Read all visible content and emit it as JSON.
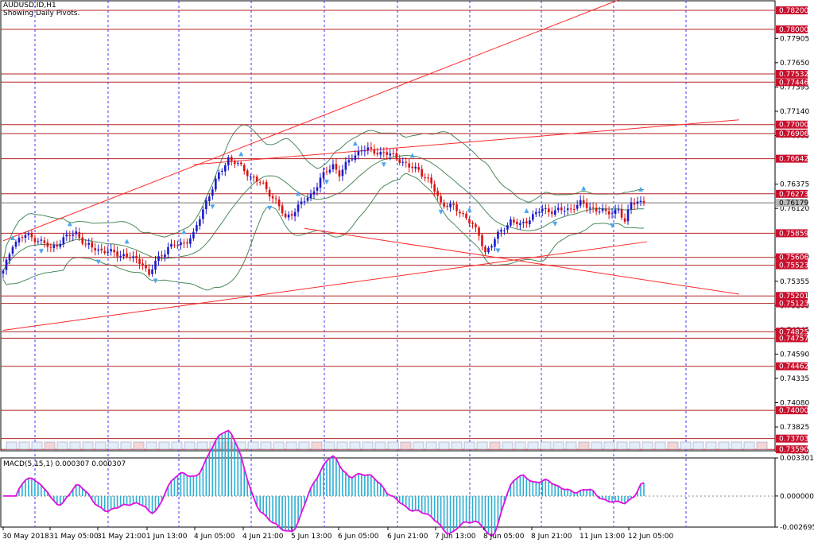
{
  "header": {
    "symbol": "AUDUSD.ID,H1",
    "subtitle": "Showing Daily Pivots."
  },
  "colors": {
    "pivot_line": "#b22222",
    "trend_line": "#ff2a2a",
    "grid": "#3a3aff",
    "bull_candle": "#1a1acc",
    "bear_candle": "#dd1111",
    "bollinger": "#4a8a5a",
    "fractal": "#4aa6ee",
    "macd_hist": "#2aaed2",
    "macd_signal": "#e010e0",
    "price_label_bg": "#c8102e"
  },
  "chart_data": [
    {
      "type": "candlestick",
      "title": "AUDUSD.ID,H1",
      "ylim": [
        0.73575,
        0.783
      ],
      "price_axis_ticks": [
        "0.77905",
        "0.77650",
        "0.77395",
        "0.77140",
        "0.76885",
        "0.76375",
        "0.76120",
        "0.75610",
        "0.75355",
        "0.75100",
        "0.74845",
        "0.74590",
        "0.74335",
        "0.74080",
        "0.73825",
        "0.73570"
      ],
      "pivot_levels": [
        "0.78200",
        "0.78000",
        "0.77532",
        "0.77446",
        "0.77000",
        "0.76906",
        "0.76642",
        "0.76273",
        "0.75859",
        "0.75606",
        "0.75523",
        "0.75201",
        "0.75123",
        "0.74825",
        "0.74757",
        "0.74462",
        "0.74000",
        "0.73703",
        "0.73590"
      ],
      "current_price": "0.76179",
      "time_labels": [
        "30 May 2018",
        "31 May 05:00",
        "31 May 21:00",
        "1 Jun 13:00",
        "4 Jun 05:00",
        "4 Jun 21:00",
        "5 Jun 13:00",
        "6 Jun 05:00",
        "6 Jun 21:00",
        "7 Jun 13:00",
        "8 Jun 05:00",
        "8 Jun 21:00",
        "11 Jun 13:00",
        "12 Jun 05:00"
      ],
      "close_path_anchors": [
        [
          0,
          0.7545
        ],
        [
          3,
          0.7575
        ],
        [
          7,
          0.7584
        ],
        [
          11,
          0.7579
        ],
        [
          15,
          0.757
        ],
        [
          20,
          0.7582
        ],
        [
          23,
          0.7587
        ],
        [
          26,
          0.7573
        ],
        [
          32,
          0.7567
        ],
        [
          38,
          0.7563
        ],
        [
          44,
          0.7555
        ],
        [
          46,
          0.7541
        ],
        [
          48,
          0.7556
        ],
        [
          52,
          0.7571
        ],
        [
          57,
          0.7576
        ],
        [
          60,
          0.7584
        ],
        [
          64,
          0.762
        ],
        [
          68,
          0.7647
        ],
        [
          71,
          0.7665
        ],
        [
          74,
          0.7658
        ],
        [
          78,
          0.7646
        ],
        [
          82,
          0.7636
        ],
        [
          86,
          0.762
        ],
        [
          89,
          0.7601
        ],
        [
          93,
          0.7614
        ],
        [
          97,
          0.7626
        ],
        [
          100,
          0.7643
        ],
        [
          104,
          0.7658
        ],
        [
          106,
          0.7648
        ],
        [
          110,
          0.7666
        ],
        [
          113,
          0.7674
        ],
        [
          117,
          0.7672
        ],
        [
          121,
          0.7669
        ],
        [
          124,
          0.7666
        ],
        [
          128,
          0.7655
        ],
        [
          131,
          0.7653
        ],
        [
          135,
          0.7637
        ],
        [
          138,
          0.7618
        ],
        [
          142,
          0.7613
        ],
        [
          146,
          0.7603
        ],
        [
          150,
          0.7584
        ],
        [
          152,
          0.7566
        ],
        [
          154,
          0.7574
        ],
        [
          157,
          0.7589
        ],
        [
          160,
          0.7599
        ],
        [
          163,
          0.7594
        ],
        [
          166,
          0.7602
        ],
        [
          170,
          0.7611
        ],
        [
          174,
          0.7609
        ],
        [
          178,
          0.7611
        ],
        [
          182,
          0.7617
        ],
        [
          186,
          0.7612
        ],
        [
          190,
          0.7607
        ],
        [
          194,
          0.7611
        ],
        [
          196,
          0.7596
        ],
        [
          198,
          0.762
        ],
        [
          202,
          0.7618
        ]
      ]
    },
    {
      "type": "histogram",
      "title": "MACD(5,15,1) 0.000307 0.000307",
      "ylim": [
        -0.002695,
        0.003301
      ],
      "axis_ticks": [
        "0.003301",
        "0.000000",
        "-0.002695"
      ]
    }
  ]
}
